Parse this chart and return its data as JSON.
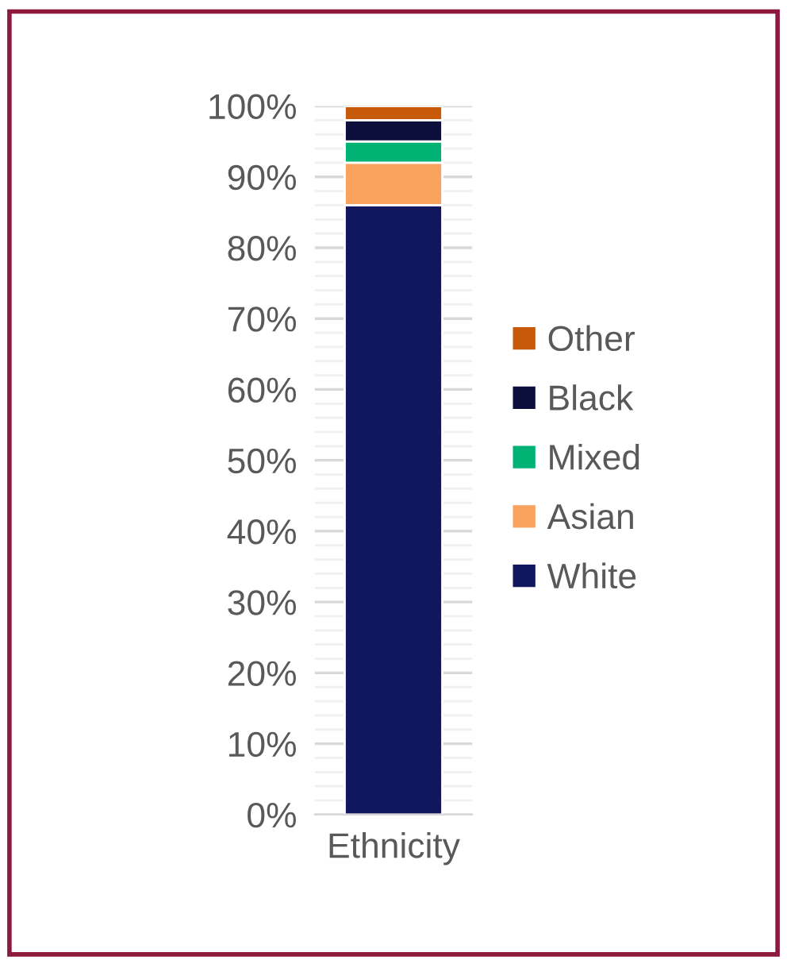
{
  "chart_data": {
    "type": "bar",
    "stacked": true,
    "categories": [
      "Ethnicity"
    ],
    "series": [
      {
        "name": "White",
        "color": "#10175e",
        "values": [
          86
        ]
      },
      {
        "name": "Asian",
        "color": "#f9a25e",
        "values": [
          6
        ]
      },
      {
        "name": "Mixed",
        "color": "#00b274",
        "values": [
          3
        ]
      },
      {
        "name": "Black",
        "color": "#0c0e3c",
        "values": [
          3
        ]
      },
      {
        "name": "Other",
        "color": "#c65a08",
        "values": [
          2
        ]
      }
    ],
    "ylim": [
      0,
      100
    ],
    "yticks": [
      {
        "value": 0,
        "label": "0%"
      },
      {
        "value": 10,
        "label": "10%"
      },
      {
        "value": 20,
        "label": "20%"
      },
      {
        "value": 30,
        "label": "30%"
      },
      {
        "value": 40,
        "label": "40%"
      },
      {
        "value": 50,
        "label": "50%"
      },
      {
        "value": 60,
        "label": "60%"
      },
      {
        "value": 70,
        "label": "70%"
      },
      {
        "value": 80,
        "label": "80%"
      },
      {
        "value": 90,
        "label": "90%"
      },
      {
        "value": 100,
        "label": "100%"
      }
    ],
    "grid": "y",
    "legend": "right"
  }
}
